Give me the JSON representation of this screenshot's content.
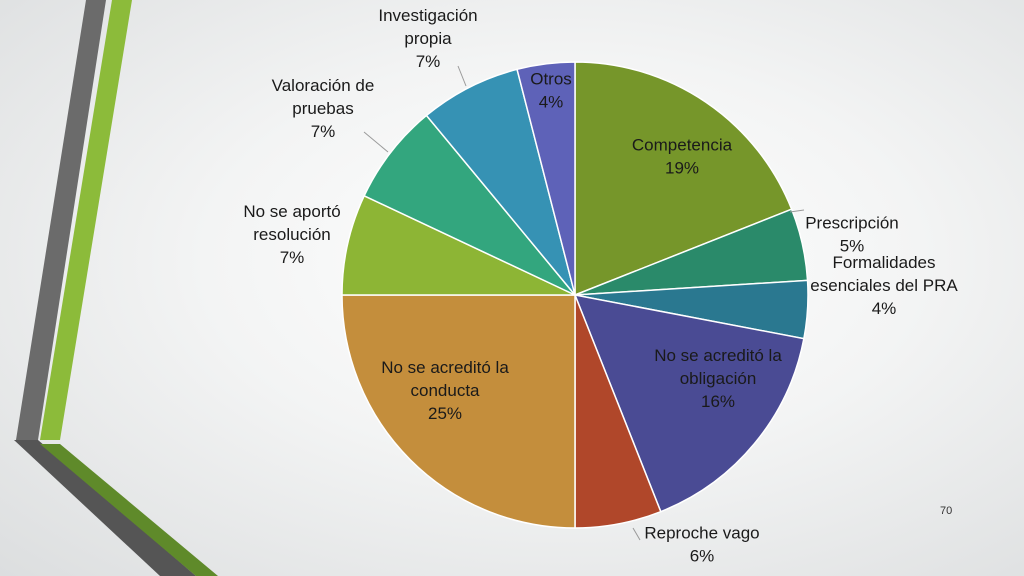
{
  "slide_number": "70",
  "chart_data": {
    "type": "pie",
    "slices": [
      {
        "label": "Competencia",
        "display": [
          "Competencia",
          "19%"
        ],
        "value": 19,
        "color": "#76962a"
      },
      {
        "label": "Prescripción",
        "display": [
          "Prescripción",
          "5%"
        ],
        "value": 5,
        "color": "#2a8a6a"
      },
      {
        "label": "Formalidades esenciales del PRA",
        "display": [
          "Formalidades",
          "esenciales del PRA",
          "4%"
        ],
        "value": 4,
        "color": "#2a7890"
      },
      {
        "label": "No se acreditó la obligación",
        "display": [
          "No se acreditó la",
          "obligación",
          "16%"
        ],
        "value": 16,
        "color": "#4a4b94"
      },
      {
        "label": "Reproche vago",
        "display": [
          "Reproche vago",
          "6%"
        ],
        "value": 6,
        "color": "#b0472a"
      },
      {
        "label": "No se acreditó la conducta",
        "display": [
          "No se acreditó la",
          "conducta",
          "25%"
        ],
        "value": 25,
        "color": "#c48e3c"
      },
      {
        "label": "No se aportó resolución",
        "display": [
          "No se aportó",
          "resolución",
          "7%"
        ],
        "value": 7,
        "color": "#8db535"
      },
      {
        "label": "Valoración de pruebas",
        "display": [
          "Valoración de",
          "pruebas",
          "7%"
        ],
        "value": 7,
        "color": "#33a67e"
      },
      {
        "label": "Investigación propia",
        "display": [
          "Investigación",
          "propia",
          "7%"
        ],
        "value": 7,
        "color": "#3692b4"
      },
      {
        "label": "Otros",
        "display": [
          "Otros",
          "4%"
        ],
        "value": 4,
        "color": "#5e62b8"
      }
    ]
  }
}
